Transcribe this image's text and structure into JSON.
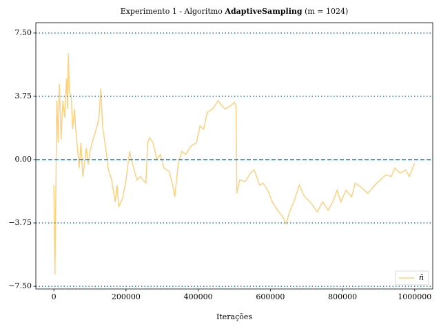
{
  "chart_data": {
    "type": "line",
    "title_parts": [
      "Experimento 1 - Algoritmo ",
      "AdaptiveSampling",
      " (m = 1024)"
    ],
    "xlabel": "Iterações",
    "x": [
      0,
      3000,
      6000,
      8000,
      12000,
      15000,
      20000,
      25000,
      30000,
      35000,
      38000,
      40000,
      43000,
      48000,
      52000,
      57000,
      60000,
      65000,
      70000,
      75000,
      80000,
      85000,
      90000,
      95000,
      100000,
      110000,
      120000,
      125000,
      130000,
      135000,
      140000,
      145000,
      150000,
      160000,
      170000,
      175000,
      180000,
      190000,
      200000,
      210000,
      215000,
      225000,
      230000,
      240000,
      255000,
      260000,
      265000,
      275000,
      285000,
      295000,
      305000,
      320000,
      330000,
      335000,
      345000,
      355000,
      365000,
      380000,
      395000,
      405000,
      415000,
      425000,
      440000,
      455000,
      465000,
      475000,
      490000,
      500000,
      505000,
      507000,
      515000,
      530000,
      545000,
      555000,
      570000,
      580000,
      595000,
      605000,
      620000,
      635000,
      643000,
      655000,
      665000,
      680000,
      695000,
      710000,
      720000,
      730000,
      745000,
      760000,
      775000,
      785000,
      795000,
      810000,
      825000,
      835000,
      850000,
      870000,
      890000,
      905000,
      920000,
      935000,
      945000,
      960000,
      975000,
      985000,
      1000000
    ],
    "series": [
      {
        "name": "n̂",
        "color": "#fdd17f",
        "values": [
          -1.5,
          -6.8,
          -1.0,
          3.5,
          1.0,
          4.5,
          1.2,
          3.5,
          2.5,
          4.8,
          3.0,
          6.3,
          4.0,
          3.8,
          1.8,
          3.0,
          2.0,
          0.8,
          -0.5,
          1.0,
          -1.0,
          -0.2,
          0.7,
          -0.3,
          0.5,
          1.3,
          2.0,
          2.5,
          4.2,
          2.0,
          1.2,
          0.5,
          -0.5,
          -1.2,
          -2.5,
          -1.5,
          -2.8,
          -2.3,
          -1.2,
          0.5,
          0.0,
          -0.8,
          -1.2,
          -1.0,
          -1.4,
          1.0,
          1.3,
          1.0,
          0.0,
          0.3,
          -0.5,
          -0.7,
          -1.6,
          -2.2,
          -0.2,
          0.5,
          0.3,
          0.8,
          1.0,
          2.0,
          1.8,
          2.8,
          3.0,
          3.5,
          3.2,
          3.0,
          3.2,
          3.4,
          3.2,
          -2.0,
          -1.2,
          -1.3,
          -0.8,
          -0.6,
          -1.5,
          -1.4,
          -1.9,
          -2.5,
          -3.0,
          -3.4,
          -3.8,
          -3.0,
          -2.5,
          -1.5,
          -2.2,
          -2.5,
          -2.8,
          -3.1,
          -2.5,
          -3.0,
          -2.4,
          -1.8,
          -2.5,
          -1.8,
          -2.2,
          -1.4,
          -1.6,
          -2.0,
          -1.5,
          -1.2,
          -0.9,
          -1.0,
          -0.5,
          -0.8,
          -0.6,
          -1.0,
          -0.2
        ]
      }
    ],
    "xlim": [
      -50000,
      1050000
    ],
    "ylim": [
      -7.66,
      8.11
    ],
    "xticks": [
      0,
      200000,
      400000,
      600000,
      800000,
      1000000
    ],
    "yticks": [
      {
        "value": -7.5,
        "label": "−7.50"
      },
      {
        "value": -3.75,
        "label": "−3.75"
      },
      {
        "value": 0,
        "label": "0.00"
      },
      {
        "value": 3.75,
        "label": "3.75"
      },
      {
        "value": 7.5,
        "label": "7.50"
      }
    ],
    "reference_lines": [
      {
        "value": 7.5,
        "style": "dotted"
      },
      {
        "value": 3.75,
        "style": "dotted"
      },
      {
        "value": 0,
        "style": "dashed"
      },
      {
        "value": -3.75,
        "style": "dotted"
      },
      {
        "value": -7.5,
        "style": "dotted"
      }
    ],
    "reference_color": "#1f77b4",
    "legend": "lower right"
  }
}
